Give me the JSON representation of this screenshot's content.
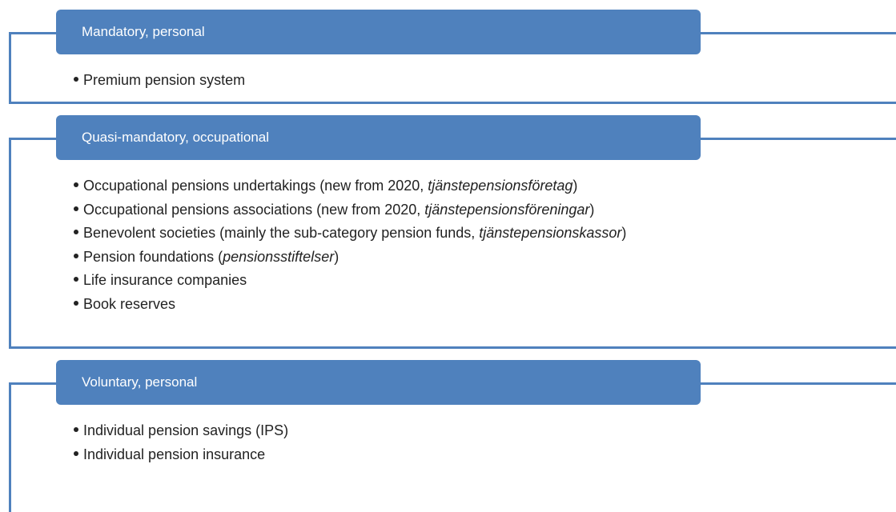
{
  "groups": [
    {
      "title": "Mandatory, personal",
      "items": [
        [
          "Premium pension system"
        ]
      ]
    },
    {
      "title": "Quasi-mandatory, occupational",
      "items": [
        [
          "Occupational pensions undertakings (new from 2020, ",
          {
            "em": "tjänstepensionsföretag"
          },
          ")"
        ],
        [
          "Occupational pensions associations (new from 2020, ",
          {
            "em": "tjänstepensionsföreningar"
          },
          ")"
        ],
        [
          "Benevolent societies (mainly the sub-category pension funds, ",
          {
            "em": "tjänstepensionskassor"
          },
          ")"
        ],
        [
          "Pension foundations (",
          {
            "em": "pensionsstiftelser"
          },
          ")"
        ],
        [
          "Life insurance companies"
        ],
        [
          "Book reserves"
        ]
      ]
    },
    {
      "title": "Voluntary, personal",
      "items": [
        [
          "Individual pension savings (IPS)"
        ],
        [
          "Individual pension insurance"
        ]
      ]
    }
  ]
}
